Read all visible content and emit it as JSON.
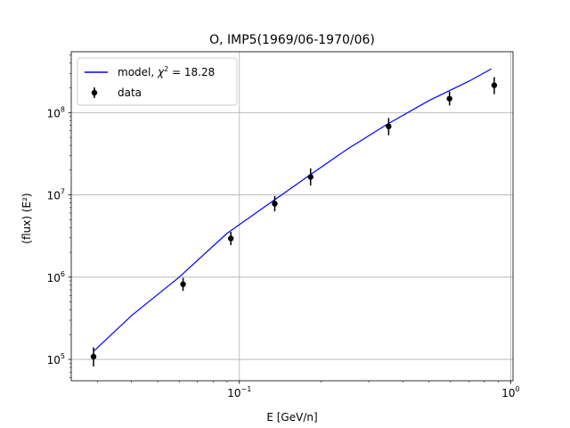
{
  "chart_data": {
    "type": "scatter",
    "title": "O, IMP5(1969/06-1970/06)",
    "xlabel": "E [GeV/n]",
    "ylabel": "(flux)  (E²)",
    "xscale": "log",
    "yscale": "log",
    "xlim": [
      0.024,
      1.02
    ],
    "ylim": [
      55000,
      550000000
    ],
    "grid": true,
    "legend_position": "top-left",
    "x_ticks": [
      {
        "value": 0.1,
        "base": "10",
        "exp": "−1"
      },
      {
        "value": 1.0,
        "base": "10",
        "exp": "0"
      }
    ],
    "y_ticks": [
      {
        "value": 100000,
        "base": "10",
        "exp": "5"
      },
      {
        "value": 1000000,
        "base": "10",
        "exp": "6"
      },
      {
        "value": 10000000,
        "base": "10",
        "exp": "7"
      },
      {
        "value": 100000000,
        "base": "10",
        "exp": "8"
      }
    ],
    "series": [
      {
        "name": "model, χ² = 18.28",
        "legend_base": "model, ",
        "legend_chi": "χ",
        "legend_sup": "2",
        "legend_rest": " = 18.28",
        "kind": "line",
        "color": "#0000ff",
        "x": [
          0.029,
          0.04,
          0.06,
          0.09,
          0.13,
          0.18,
          0.25,
          0.35,
          0.5,
          0.7,
          0.85
        ],
        "y": [
          125000,
          340000,
          1000000,
          3400000,
          8000000,
          17000000,
          36000000,
          72000000,
          140000000,
          240000000,
          340000000
        ]
      },
      {
        "name": "data",
        "kind": "errorbar",
        "color": "#000000",
        "points": [
          {
            "x": 0.029,
            "y": 108000,
            "ylow": 82000,
            "yhigh": 140000
          },
          {
            "x": 0.062,
            "y": 820000,
            "ylow": 680000,
            "yhigh": 980000
          },
          {
            "x": 0.093,
            "y": 2950000,
            "ylow": 2450000,
            "yhigh": 3550000
          },
          {
            "x": 0.135,
            "y": 7800000,
            "ylow": 6300000,
            "yhigh": 9700000
          },
          {
            "x": 0.183,
            "y": 16500000,
            "ylow": 13000000,
            "yhigh": 21000000
          },
          {
            "x": 0.355,
            "y": 68000000,
            "ylow": 53000000,
            "yhigh": 86000000
          },
          {
            "x": 0.595,
            "y": 148000000,
            "ylow": 122000000,
            "yhigh": 180000000
          },
          {
            "x": 0.87,
            "y": 215000000,
            "ylow": 168000000,
            "yhigh": 270000000
          }
        ]
      }
    ]
  }
}
